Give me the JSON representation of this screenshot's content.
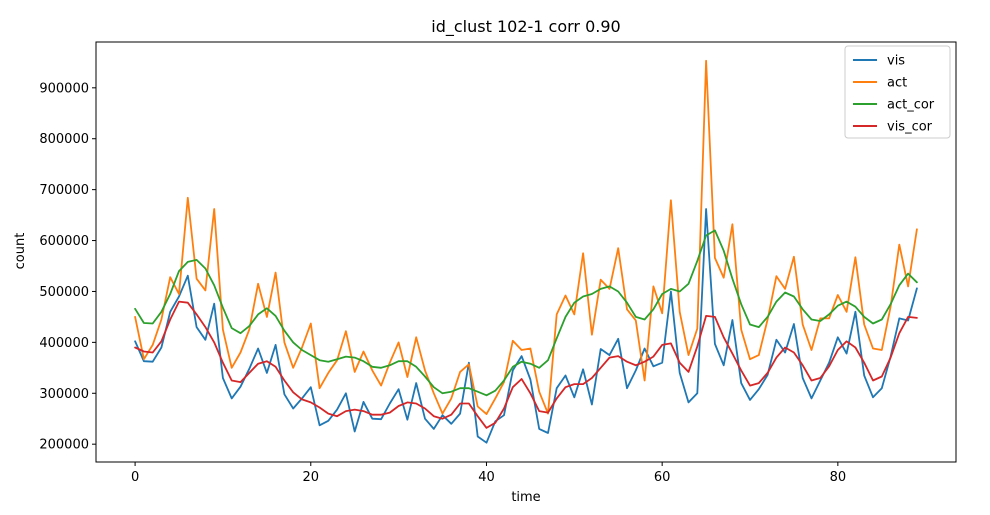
{
  "chart_data": {
    "type": "line",
    "title": "id_clust 102-1 corr 0.90",
    "xlabel": "time",
    "ylabel": "count",
    "xlim": [
      -4.45,
      93.45
    ],
    "ylim": [
      165000,
      990000
    ],
    "xticks": [
      0,
      20,
      40,
      60,
      80
    ],
    "yticks": [
      200000,
      300000,
      400000,
      500000,
      600000,
      700000,
      800000,
      900000
    ],
    "grid": false,
    "legend_position": "top-right",
    "x": [
      0,
      1,
      2,
      3,
      4,
      5,
      6,
      7,
      8,
      9,
      10,
      11,
      12,
      13,
      14,
      15,
      16,
      17,
      18,
      19,
      20,
      21,
      22,
      23,
      24,
      25,
      26,
      27,
      28,
      29,
      30,
      31,
      32,
      33,
      34,
      35,
      36,
      37,
      38,
      39,
      40,
      41,
      42,
      43,
      44,
      45,
      46,
      47,
      48,
      49,
      50,
      51,
      52,
      53,
      54,
      55,
      56,
      57,
      58,
      59,
      60,
      61,
      62,
      63,
      64,
      65,
      66,
      67,
      68,
      69,
      70,
      71,
      72,
      73,
      74,
      75,
      76,
      77,
      78,
      79,
      80,
      81,
      82,
      83,
      84,
      85,
      86,
      87,
      88,
      89
    ],
    "series": [
      {
        "name": "vis",
        "color": "#1f77b4",
        "values": [
          402000,
          363000,
          362000,
          390000,
          460000,
          490000,
          531000,
          430000,
          405000,
          476000,
          330000,
          290000,
          313000,
          348000,
          388000,
          340000,
          395000,
          298000,
          270000,
          290000,
          312000,
          237000,
          246000,
          268000,
          300000,
          225000,
          283000,
          250000,
          249000,
          280000,
          308000,
          248000,
          320000,
          250000,
          230000,
          257000,
          240000,
          260000,
          360000,
          215000,
          203000,
          245000,
          257000,
          345000,
          373000,
          327000,
          230000,
          222000,
          310000,
          335000,
          292000,
          347000,
          278000,
          387000,
          375000,
          407000,
          310000,
          345000,
          388000,
          353000,
          360000,
          500000,
          340000,
          282000,
          300000,
          662000,
          397000,
          355000,
          444000,
          320000,
          287000,
          308000,
          336000,
          405000,
          380000,
          436000,
          330000,
          290000,
          325000,
          360000,
          410000,
          378000,
          460000,
          335000,
          292000,
          310000,
          372000,
          447000,
          443000,
          506000
        ]
      },
      {
        "name": "act",
        "color": "#ff7f0e",
        "values": [
          450000,
          367000,
          395000,
          445000,
          528000,
          495000,
          684000,
          525000,
          502000,
          662000,
          425000,
          350000,
          380000,
          425000,
          515000,
          450000,
          537000,
          400000,
          350000,
          390000,
          437000,
          310000,
          340000,
          365000,
          422000,
          342000,
          382000,
          345000,
          315000,
          360000,
          400000,
          332000,
          410000,
          345000,
          300000,
          260000,
          290000,
          342000,
          357000,
          274000,
          259000,
          290000,
          322000,
          403000,
          385000,
          388000,
          303000,
          260000,
          455000,
          492000,
          455000,
          575000,
          415000,
          523000,
          505000,
          585000,
          465000,
          443000,
          325000,
          510000,
          457000,
          679000,
          460000,
          375000,
          427000,
          953000,
          566000,
          527000,
          632000,
          425000,
          367000,
          375000,
          445000,
          530000,
          505000,
          568000,
          435000,
          385000,
          447000,
          447000,
          493000,
          460000,
          567000,
          435000,
          388000,
          385000,
          470000,
          592000,
          510000,
          622000
        ]
      },
      {
        "name": "act_cor",
        "color": "#2ca02c",
        "values": [
          466000,
          438000,
          437000,
          460000,
          495000,
          540000,
          558000,
          562000,
          545000,
          512000,
          468000,
          428000,
          418000,
          432000,
          455000,
          467000,
          452000,
          423000,
          400000,
          385000,
          375000,
          365000,
          362000,
          367000,
          372000,
          370000,
          363000,
          352000,
          350000,
          355000,
          363000,
          363000,
          352000,
          333000,
          312000,
          300000,
          303000,
          310000,
          310000,
          303000,
          296000,
          305000,
          325000,
          352000,
          362000,
          358000,
          350000,
          365000,
          408000,
          450000,
          478000,
          490000,
          495000,
          505000,
          510000,
          500000,
          478000,
          450000,
          445000,
          465000,
          495000,
          505000,
          500000,
          515000,
          560000,
          610000,
          620000,
          580000,
          525000,
          475000,
          435000,
          430000,
          450000,
          480000,
          498000,
          490000,
          465000,
          445000,
          442000,
          455000,
          472000,
          480000,
          470000,
          450000,
          437000,
          445000,
          475000,
          512000,
          535000,
          518000
        ]
      },
      {
        "name": "vis_cor",
        "color": "#d62728",
        "values": [
          390000,
          382000,
          380000,
          402000,
          445000,
          480000,
          478000,
          455000,
          430000,
          400000,
          360000,
          325000,
          322000,
          340000,
          358000,
          363000,
          352000,
          325000,
          302000,
          288000,
          282000,
          272000,
          260000,
          255000,
          265000,
          268000,
          265000,
          258000,
          258000,
          262000,
          275000,
          282000,
          280000,
          270000,
          255000,
          250000,
          258000,
          280000,
          280000,
          255000,
          232000,
          242000,
          270000,
          312000,
          328000,
          300000,
          265000,
          262000,
          290000,
          312000,
          318000,
          318000,
          330000,
          350000,
          370000,
          373000,
          362000,
          355000,
          362000,
          372000,
          395000,
          398000,
          360000,
          342000,
          392000,
          452000,
          450000,
          410000,
          378000,
          345000,
          315000,
          320000,
          340000,
          370000,
          390000,
          380000,
          355000,
          325000,
          330000,
          353000,
          385000,
          402000,
          390000,
          360000,
          325000,
          333000,
          370000,
          418000,
          450000,
          448000
        ]
      }
    ]
  }
}
